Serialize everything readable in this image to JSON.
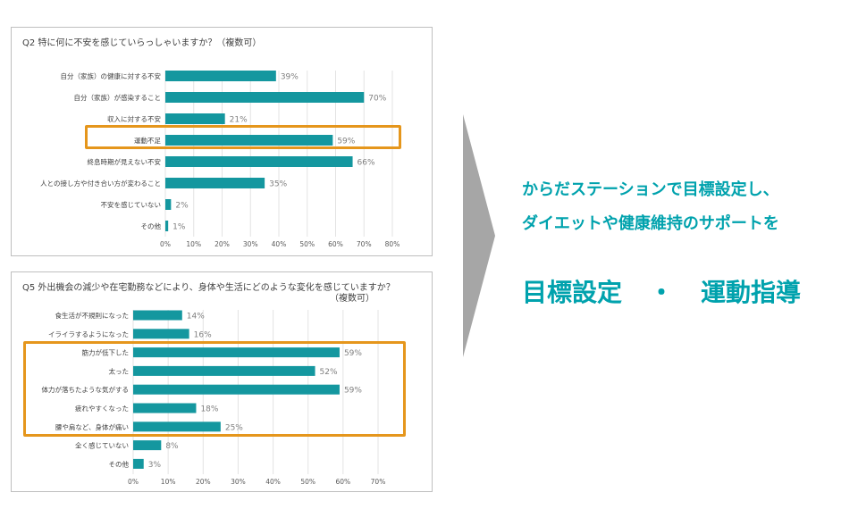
{
  "colors": {
    "bar": "#14979f",
    "highlight": "#e5961c",
    "accent_text": "#00a2ad",
    "arrow": "#a6a6a6"
  },
  "charts_meta": {
    "q2": {
      "title": "Q2 特に何に不安を感じていらっしゃいますか？（複数可）",
      "subtitle": ""
    },
    "q5": {
      "title": "Q5 外出機会の減少や在宅勤務などにより、身体や生活にどのような変化を感じていますか？",
      "subtitle": "（複数可）"
    }
  },
  "message": {
    "line1": "からだステーションで目標設定し、",
    "line2": "ダイエットや健康維持のサポートを",
    "keyword1": "目標設定",
    "separator": "・",
    "keyword2": "運動指導"
  },
  "chart_data": [
    {
      "type": "bar",
      "orientation": "horizontal",
      "title": "Q2 特に何に不安を感じていらっしゃいますか？（複数可）",
      "categories": [
        "自分（家族）の健康に対する不安",
        "自分（家族）が感染すること",
        "収入に対する不安",
        "運動不足",
        "終息時期が見えない不安",
        "人との接し方や付き合い方が変わること",
        "不安を感じていない",
        "その他"
      ],
      "values": [
        39,
        70,
        21,
        59,
        66,
        35,
        2,
        1
      ],
      "value_labels": [
        "39%",
        "70%",
        "21%",
        "59%",
        "66%",
        "35%",
        "2%",
        "1%"
      ],
      "xlim": [
        0,
        80
      ],
      "ticks": [
        "0%",
        "10%",
        "20%",
        "30%",
        "40%",
        "50%",
        "60%",
        "70%",
        "80%"
      ],
      "grid": true,
      "highlighted": [
        "運動不足"
      ]
    },
    {
      "type": "bar",
      "orientation": "horizontal",
      "title": "Q5 外出機会の減少や在宅勤務などにより、身体や生活にどのような変化を感じていますか？（複数可）",
      "categories": [
        "食生活が不規則になった",
        "イライラするようになった",
        "筋力が低下した",
        "太った",
        "体力が落ちたような気がする",
        "疲れやすくなった",
        "腰や肩など、身体が痛い",
        "全く感じていない",
        "その他"
      ],
      "values": [
        14,
        16,
        59,
        52,
        59,
        18,
        25,
        8,
        3
      ],
      "value_labels": [
        "14%",
        "16%",
        "59%",
        "52%",
        "59%",
        "18%",
        "25%",
        "8%",
        "3%"
      ],
      "xlim": [
        0,
        70
      ],
      "ticks": [
        "0%",
        "10%",
        "20%",
        "30%",
        "40%",
        "50%",
        "60%",
        "70%"
      ],
      "grid": true,
      "highlighted": [
        "筋力が低下した",
        "太った",
        "体力が落ちたような気がする",
        "疲れやすくなった",
        "腰や肩など、身体が痛い"
      ]
    }
  ]
}
